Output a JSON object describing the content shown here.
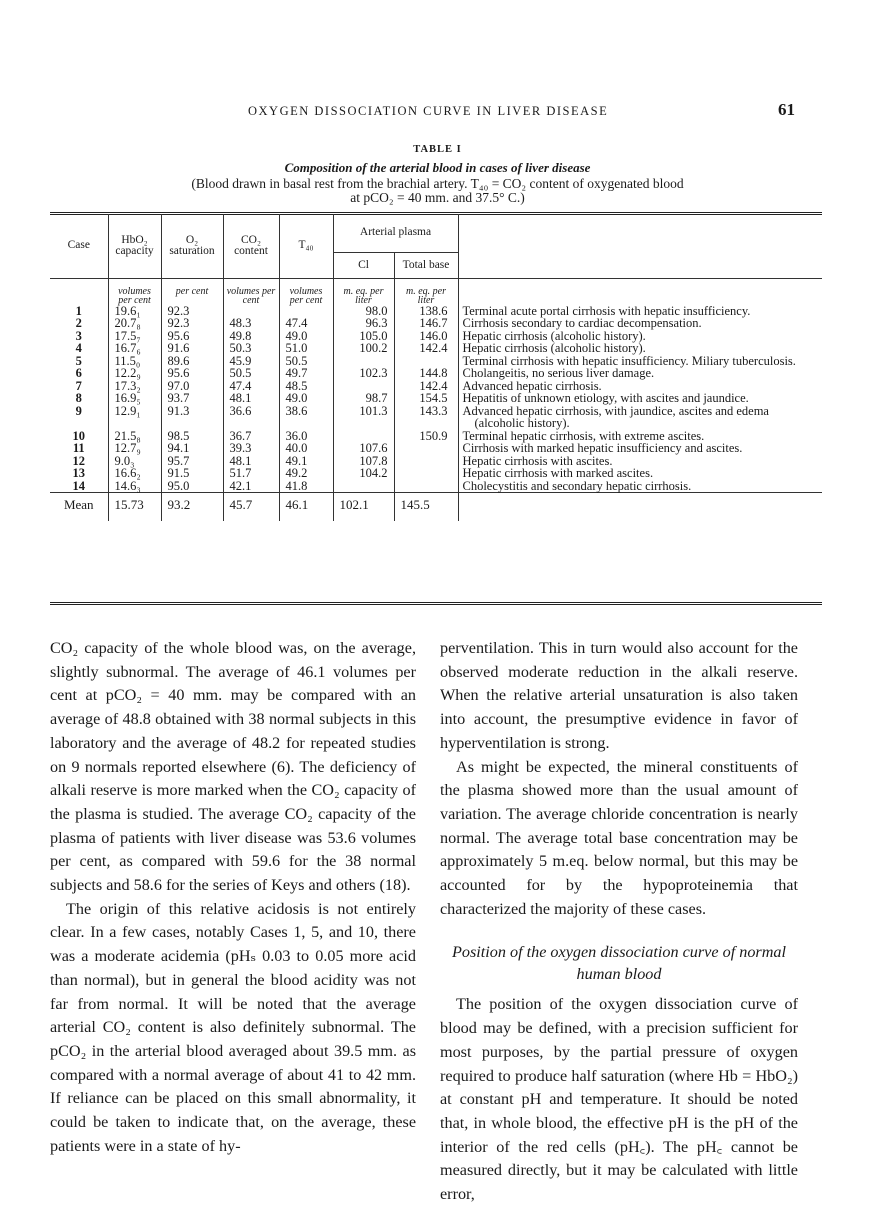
{
  "header": {
    "running_title": "OXYGEN DISSOCIATION CURVE IN LIVER DISEASE",
    "page_number": "61"
  },
  "table": {
    "label": "TABLE I",
    "title": "Composition of the arterial blood in cases of liver disease",
    "note_line1": "(Blood drawn in basal rest from the brachial artery.  T₄₀ = CO₂ content of oxygenated blood",
    "note_line2": "at pCO₂ = 40 mm. and 37.5° C.)",
    "headers": {
      "case": "Case",
      "hbo2": "HbO₂ capacity",
      "o2": "O₂ saturation",
      "co2": "CO₂ content",
      "t40": "T₄₀",
      "arterial": "Arterial plasma",
      "cl": "Cl",
      "tb": "Total base"
    },
    "units": [
      "volumes per cent",
      "per cent",
      "volumes per cent",
      "volumes per cent",
      "m. eq. per liter",
      "m. eq. per liter"
    ],
    "rows": [
      {
        "case": "1",
        "hbo2": "19.6₁",
        "o2": "92.3",
        "co2": "",
        "t40": "",
        "cl": "98.0",
        "tb": "138.6",
        "desc": "Terminal acute portal cirrhosis with hepatic insufficiency."
      },
      {
        "case": "2",
        "hbo2": "20.7₈",
        "o2": "92.3",
        "co2": "48.3",
        "t40": "47.4",
        "cl": "96.3",
        "tb": "146.7",
        "desc": "Cirrhosis secondary to cardiac decompensation."
      },
      {
        "case": "3",
        "hbo2": "17.5₇",
        "o2": "95.6",
        "co2": "49.8",
        "t40": "49.0",
        "cl": "105.0",
        "tb": "146.0",
        "desc": "Hepatic cirrhosis (alcoholic history)."
      },
      {
        "case": "4",
        "hbo2": "16.7₆",
        "o2": "91.6",
        "co2": "50.3",
        "t40": "51.0",
        "cl": "100.2",
        "tb": "142.4",
        "desc": "Hepatic cirrhosis (alcoholic history)."
      },
      {
        "case": "5",
        "hbo2": "11.5₀",
        "o2": "89.6",
        "co2": "45.9",
        "t40": "50.5",
        "cl": "",
        "tb": "",
        "desc": "Terminal cirrhosis with hepatic insufficiency.  Miliary tuberculosis."
      },
      {
        "case": "6",
        "hbo2": "12.2₉",
        "o2": "95.6",
        "co2": "50.5",
        "t40": "49.7",
        "cl": "102.3",
        "tb": "144.8",
        "desc": "Cholangeitis, no serious liver damage."
      },
      {
        "case": "7",
        "hbo2": "17.3₂",
        "o2": "97.0",
        "co2": "47.4",
        "t40": "48.5",
        "cl": "",
        "tb": "142.4",
        "desc": "Advanced hepatic cirrhosis."
      },
      {
        "case": "8",
        "hbo2": "16.9₅",
        "o2": "93.7",
        "co2": "48.1",
        "t40": "49.0",
        "cl": "98.7",
        "tb": "154.5",
        "desc": "Hepatitis of unknown etiology, with ascites and jaundice."
      },
      {
        "case": "9",
        "hbo2": "12.9₁",
        "o2": "91.3",
        "co2": "36.6",
        "t40": "38.6",
        "cl": "101.3",
        "tb": "143.3",
        "desc": "Advanced hepatic cirrhosis, with jaundice, ascites and edema (alcoholic history)."
      },
      {
        "case": "10",
        "hbo2": "21.5₈",
        "o2": "98.5",
        "co2": "36.7",
        "t40": "36.0",
        "cl": "",
        "tb": "150.9",
        "desc": "Terminal hepatic cirrhosis, with extreme ascites."
      },
      {
        "case": "11",
        "hbo2": "12.7₉",
        "o2": "94.1",
        "co2": "39.3",
        "t40": "40.0",
        "cl": "107.6",
        "tb": "",
        "desc": "Cirrhosis with marked hepatic insufficiency and ascites."
      },
      {
        "case": "12",
        "hbo2": "9.0₃",
        "o2": "95.7",
        "co2": "48.1",
        "t40": "49.1",
        "cl": "107.8",
        "tb": "",
        "desc": "Hepatic cirrhosis with ascites."
      },
      {
        "case": "13",
        "hbo2": "16.6₂",
        "o2": "91.5",
        "co2": "51.7",
        "t40": "49.2",
        "cl": "104.2",
        "tb": "",
        "desc": "Hepatic cirrhosis with marked ascites."
      },
      {
        "case": "14",
        "hbo2": "14.6₃",
        "o2": "95.0",
        "co2": "42.1",
        "t40": "41.8",
        "cl": "",
        "tb": "",
        "desc": "Cholecystitis and secondary hepatic cirrhosis."
      }
    ],
    "mean": {
      "case": "Mean",
      "hbo2": "15.73",
      "o2": "93.2",
      "co2": "45.7",
      "t40": "46.1",
      "cl": "102.1",
      "tb": "145.5"
    }
  },
  "body": {
    "left": [
      "CO₂ capacity of the whole blood was, on the average, slightly subnormal. The average of 46.1 volumes per cent at pCO₂ = 40 mm. may be compared with an average of 48.8 obtained with 38 normal subjects in this laboratory and the average of 48.2 for repeated studies on 9 normals reported elsewhere (6). The deficiency of alkali reserve is more marked when the CO₂ capacity of the plasma is studied. The average CO₂ capacity of the plasma of patients with liver disease was 53.6 volumes per cent, as compared with 59.6 for the 38 normal subjects and 58.6 for the series of Keys and others (18).",
      "The origin of this relative acidosis is not entirely clear. In a few cases, notably Cases 1, 5, and 10, there was a moderate acidemia (pHₛ 0.03 to 0.05 more acid than normal), but in general the blood acidity was not far from normal. It will be noted that the average arterial CO₂ content is also definitely subnormal. The pCO₂ in the arterial blood averaged about 39.5 mm. as compared with a normal average of about 41 to 42 mm. If reliance can be placed on this small abnormality, it could be taken to indicate that, on the average, these patients were in a state of hy-"
    ],
    "right": [
      "perventilation. This in turn would also account for the observed moderate reduction in the alkali reserve. When the relative arterial unsaturation is also taken into account, the presumptive evidence in favor of hyperventilation is strong.",
      "As might be expected, the mineral constituents of the plasma showed more than the usual amount of variation. The average chloride concentration is nearly normal. The average total base concentration may be approximately 5 m.eq. below normal, but this may be accounted for by the hypoproteinemia that characterized the majority of these cases."
    ],
    "section_heading": "Position of the oxygen dissociation curve of normal human blood",
    "right_after": "The position of the oxygen dissociation curve of blood may be defined, with a precision sufficient for most purposes, by the partial pressure of oxygen required to produce half saturation (where Hb = HbO₂) at constant pH and temperature. It should be noted that, in whole blood, the effective pH is the pH of the interior of the red cells (pH꜀). The pH꜀ cannot be measured directly, but it may be calculated with little error,"
  }
}
